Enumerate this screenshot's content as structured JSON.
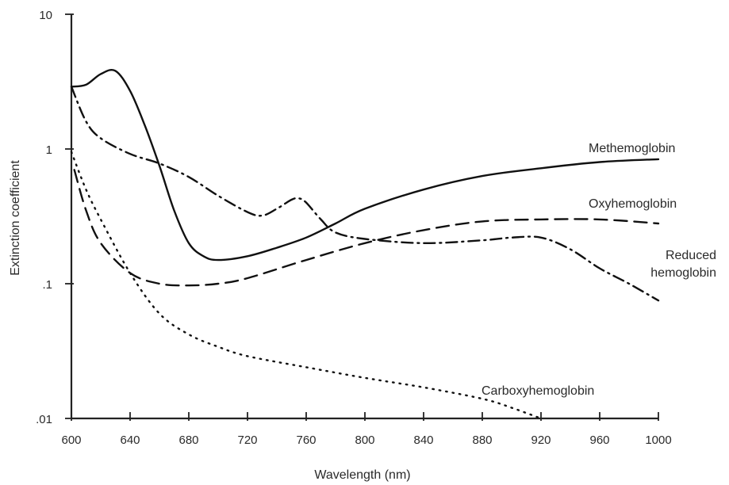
{
  "chart_data": {
    "type": "line",
    "xlabel": "Wavelength (nm)",
    "ylabel": "Extinction coefficient",
    "x_ticks": [
      600,
      640,
      680,
      720,
      760,
      800,
      840,
      880,
      920,
      960,
      1000
    ],
    "x_tick_labels": [
      "600",
      "640",
      "680",
      "720",
      "760",
      "800",
      "840",
      "880",
      "920",
      "960",
      "1000"
    ],
    "xlim": [
      600,
      1000
    ],
    "y_scale": "log",
    "y_ticks": [
      0.01,
      0.1,
      1,
      10
    ],
    "y_tick_labels": [
      ".01",
      ".1",
      "1",
      "10"
    ],
    "ylim": [
      0.01,
      10
    ],
    "grid": false,
    "series": [
      {
        "name": "Methemoglobin",
        "label_lines": [
          "Methemoglobin"
        ],
        "line_style": "solid",
        "x": [
          600,
          610,
          620,
          630,
          640,
          650,
          660,
          670,
          680,
          690,
          700,
          720,
          740,
          760,
          780,
          800,
          840,
          880,
          920,
          960,
          1000
        ],
        "y": [
          2.9,
          3.0,
          3.6,
          3.8,
          2.7,
          1.5,
          0.75,
          0.35,
          0.2,
          0.16,
          0.15,
          0.16,
          0.185,
          0.22,
          0.28,
          0.36,
          0.5,
          0.63,
          0.72,
          0.8,
          0.84
        ]
      },
      {
        "name": "Oxyhemoglobin",
        "label_lines": [
          "Oxyhemoglobin"
        ],
        "line_style": "dashed",
        "x": [
          602,
          610,
          620,
          640,
          660,
          680,
          700,
          720,
          760,
          800,
          840,
          880,
          920,
          960,
          1000
        ],
        "y": [
          0.7,
          0.35,
          0.2,
          0.12,
          0.1,
          0.097,
          0.1,
          0.11,
          0.15,
          0.2,
          0.25,
          0.29,
          0.3,
          0.3,
          0.28
        ]
      },
      {
        "name": "Reduced hemoglobin",
        "label_lines": [
          "Reduced",
          "hemoglobin"
        ],
        "line_style": "dash-dot",
        "x": [
          600,
          610,
          620,
          640,
          660,
          680,
          700,
          720,
          730,
          740,
          750,
          755,
          760,
          770,
          780,
          800,
          840,
          880,
          900,
          920,
          940,
          960,
          980,
          1000
        ],
        "y": [
          2.9,
          1.6,
          1.2,
          0.92,
          0.78,
          0.62,
          0.45,
          0.34,
          0.32,
          0.36,
          0.42,
          0.43,
          0.4,
          0.3,
          0.24,
          0.215,
          0.2,
          0.21,
          0.22,
          0.22,
          0.18,
          0.13,
          0.1,
          0.075
        ]
      },
      {
        "name": "Carboxyhemoglobin",
        "label_lines": [
          "Carboxyhemoglobin"
        ],
        "line_style": "dotted",
        "x": [
          600,
          610,
          620,
          640,
          660,
          680,
          700,
          720,
          760,
          800,
          840,
          880,
          900,
          920
        ],
        "y": [
          0.95,
          0.5,
          0.3,
          0.12,
          0.06,
          0.042,
          0.034,
          0.029,
          0.024,
          0.02,
          0.017,
          0.014,
          0.012,
          0.01
        ]
      }
    ]
  }
}
